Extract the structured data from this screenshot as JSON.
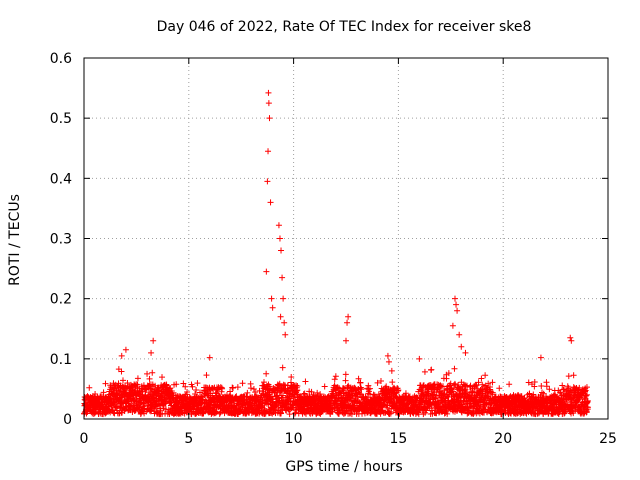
{
  "chart_data": {
    "type": "scatter",
    "title": "Day 046 of 2022, Rate Of TEC Index for receiver ske8",
    "xlabel": "GPS time / hours",
    "ylabel": "ROTI / TECUs",
    "xlim": [
      0,
      25
    ],
    "ylim": [
      0,
      0.6
    ],
    "x_ticks": [
      0,
      5,
      10,
      15,
      20,
      25
    ],
    "x_tick_labels": [
      "0",
      "5",
      "10",
      "15",
      "20",
      "25"
    ],
    "y_ticks": [
      0,
      0.1,
      0.2,
      0.3,
      0.4,
      0.5,
      0.6
    ],
    "y_tick_labels": [
      "0",
      "0.1",
      "0.2",
      "0.3",
      "0.4",
      "0.5",
      "0.6"
    ],
    "grid": true,
    "marker": "+",
    "color": "#ff0000",
    "series": [
      {
        "name": "ROTI",
        "x": [
          8.8,
          8.82,
          8.85,
          8.78,
          8.75,
          8.9,
          8.7,
          8.95,
          9.0,
          9.3,
          9.35,
          9.4,
          9.45,
          9.5,
          9.38,
          9.55,
          9.6,
          12.6,
          12.55,
          12.5,
          14.5,
          14.55,
          17.7,
          17.75,
          17.8,
          17.6,
          17.9,
          18.0,
          18.2,
          23.2,
          23.25,
          3.3,
          3.2,
          6.0,
          2.0,
          1.8,
          21.8,
          16.0
        ],
        "y": [
          0.542,
          0.525,
          0.5,
          0.445,
          0.395,
          0.36,
          0.245,
          0.2,
          0.185,
          0.322,
          0.3,
          0.28,
          0.235,
          0.2,
          0.17,
          0.16,
          0.14,
          0.17,
          0.16,
          0.13,
          0.105,
          0.095,
          0.2,
          0.19,
          0.18,
          0.155,
          0.14,
          0.12,
          0.11,
          0.135,
          0.13,
          0.13,
          0.11,
          0.102,
          0.115,
          0.105,
          0.102,
          0.1
        ],
        "baseline_description": "dense band of points 0.0-0.08 across 0-24 h"
      }
    ]
  }
}
